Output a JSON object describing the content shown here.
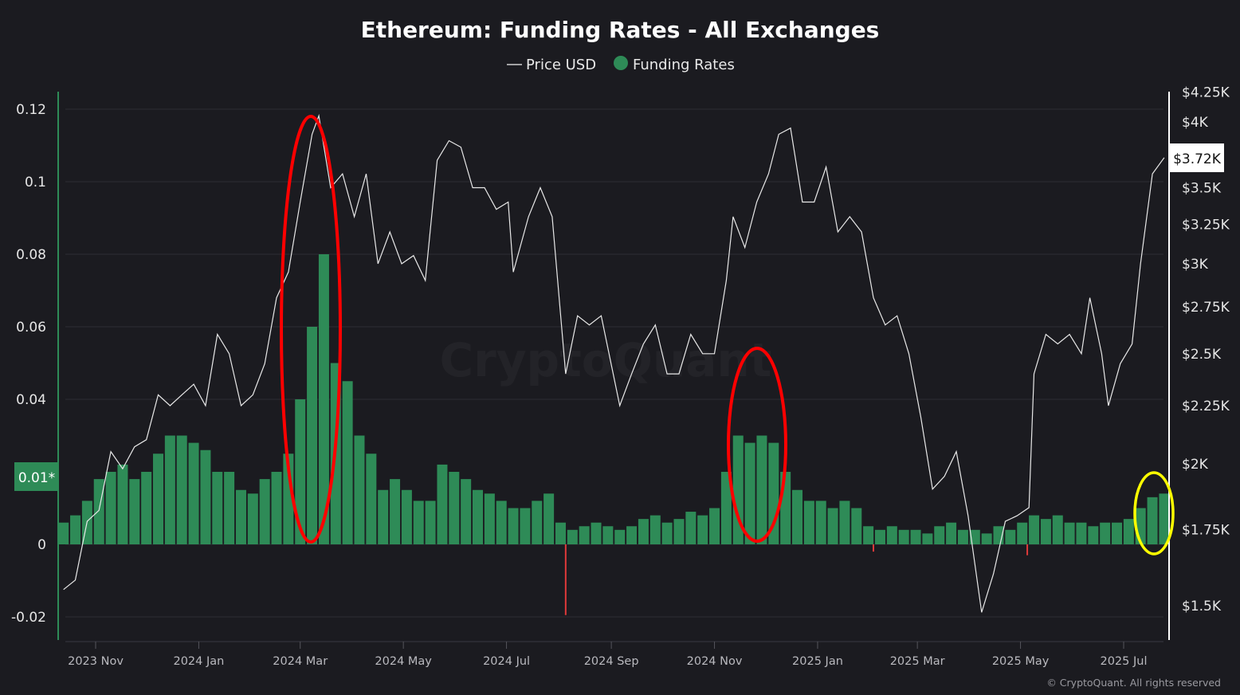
{
  "chart_data": {
    "type": "bar+line",
    "title": "Ethereum: Funding Rates - All Exchanges",
    "legend": [
      {
        "name": "Price USD",
        "color": "#e8e8e8",
        "symbol": "line"
      },
      {
        "name": "Funding Rates",
        "color": "#2e8b57",
        "symbol": "dot"
      }
    ],
    "legend_position": "top-center",
    "grid": true,
    "left_axis": {
      "ticks": [
        0.12,
        0.1,
        0.08,
        0.06,
        0.04,
        0,
        -0.02
      ],
      "tick_labels": [
        "0.12",
        "0.1",
        "0.08",
        "0.06",
        "0.04",
        "0",
        "-0.02"
      ],
      "ylim": [
        -0.026,
        0.124
      ],
      "highlight_label": "0.01*",
      "highlight_value": 0.01
    },
    "right_axis": {
      "scale": "log",
      "tick_labels": [
        "$4.25K",
        "$4K",
        "$3.5K",
        "$3.25K",
        "$3K",
        "$2.75K",
        "$2.5K",
        "$2.25K",
        "$2K",
        "$1.75K",
        "$1.5K"
      ],
      "ticks": [
        4250,
        4000,
        3500,
        3250,
        3000,
        2750,
        2500,
        2250,
        2000,
        1750,
        1500
      ],
      "current_label": "$3.72K",
      "current_value": 3720
    },
    "x_axis": {
      "tick_labels": [
        "2023 Nov",
        "2024 Jan",
        "2024 Mar",
        "2024 May",
        "2024 Jul",
        "2024 Sep",
        "2024 Nov",
        "2025 Jan",
        "2025 Mar",
        "2025 May",
        "2025 Jul"
      ],
      "ticks": [
        "2023-11-01",
        "2024-01-01",
        "2024-03-01",
        "2024-05-01",
        "2024-07-01",
        "2024-09-01",
        "2024-11-01",
        "2025-01-01",
        "2025-03-01",
        "2025-05-01",
        "2025-07-01"
      ]
    },
    "colors": {
      "positive": "#2e8b57",
      "negative": "#e03a3a",
      "price": "#e8e8e8",
      "annotation_red": "#ff0000",
      "annotation_yellow": "#ffff00"
    },
    "price_series": [
      [
        "2023-10-13",
        1550
      ],
      [
        "2023-10-20",
        1580
      ],
      [
        "2023-10-27",
        1780
      ],
      [
        "2023-11-03",
        1820
      ],
      [
        "2023-11-10",
        2050
      ],
      [
        "2023-11-17",
        1980
      ],
      [
        "2023-11-24",
        2070
      ],
      [
        "2023-12-01",
        2100
      ],
      [
        "2023-12-08",
        2300
      ],
      [
        "2023-12-15",
        2250
      ],
      [
        "2023-12-22",
        2300
      ],
      [
        "2023-12-29",
        2350
      ],
      [
        "2024-01-05",
        2250
      ],
      [
        "2024-01-12",
        2600
      ],
      [
        "2024-01-19",
        2500
      ],
      [
        "2024-01-26",
        2250
      ],
      [
        "2024-02-02",
        2300
      ],
      [
        "2024-02-09",
        2450
      ],
      [
        "2024-02-16",
        2800
      ],
      [
        "2024-02-23",
        2950
      ],
      [
        "2024-03-01",
        3400
      ],
      [
        "2024-03-08",
        3900
      ],
      [
        "2024-03-12",
        4050
      ],
      [
        "2024-03-19",
        3500
      ],
      [
        "2024-03-26",
        3600
      ],
      [
        "2024-04-02",
        3300
      ],
      [
        "2024-04-09",
        3600
      ],
      [
        "2024-04-16",
        3000
      ],
      [
        "2024-04-23",
        3200
      ],
      [
        "2024-04-30",
        3000
      ],
      [
        "2024-05-07",
        3050
      ],
      [
        "2024-05-14",
        2900
      ],
      [
        "2024-05-21",
        3700
      ],
      [
        "2024-05-28",
        3850
      ],
      [
        "2024-06-04",
        3800
      ],
      [
        "2024-06-11",
        3500
      ],
      [
        "2024-06-18",
        3500
      ],
      [
        "2024-06-25",
        3350
      ],
      [
        "2024-07-02",
        3400
      ],
      [
        "2024-07-05",
        2950
      ],
      [
        "2024-07-14",
        3300
      ],
      [
        "2024-07-21",
        3500
      ],
      [
        "2024-07-28",
        3300
      ],
      [
        "2024-08-05",
        2400
      ],
      [
        "2024-08-12",
        2700
      ],
      [
        "2024-08-19",
        2650
      ],
      [
        "2024-08-26",
        2700
      ],
      [
        "2024-09-06",
        2250
      ],
      [
        "2024-09-13",
        2400
      ],
      [
        "2024-09-20",
        2550
      ],
      [
        "2024-09-27",
        2650
      ],
      [
        "2024-10-04",
        2400
      ],
      [
        "2024-10-11",
        2400
      ],
      [
        "2024-10-18",
        2600
      ],
      [
        "2024-10-25",
        2500
      ],
      [
        "2024-11-01",
        2500
      ],
      [
        "2024-11-08",
        2900
      ],
      [
        "2024-11-12",
        3300
      ],
      [
        "2024-11-19",
        3100
      ],
      [
        "2024-11-26",
        3400
      ],
      [
        "2024-12-03",
        3600
      ],
      [
        "2024-12-09",
        3900
      ],
      [
        "2024-12-16",
        3950
      ],
      [
        "2024-12-23",
        3400
      ],
      [
        "2024-12-30",
        3400
      ],
      [
        "2025-01-06",
        3650
      ],
      [
        "2025-01-13",
        3200
      ],
      [
        "2025-01-20",
        3300
      ],
      [
        "2025-01-27",
        3200
      ],
      [
        "2025-02-03",
        2800
      ],
      [
        "2025-02-10",
        2650
      ],
      [
        "2025-02-17",
        2700
      ],
      [
        "2025-02-24",
        2500
      ],
      [
        "2025-03-03",
        2200
      ],
      [
        "2025-03-10",
        1900
      ],
      [
        "2025-03-17",
        1950
      ],
      [
        "2025-03-24",
        2050
      ],
      [
        "2025-03-31",
        1800
      ],
      [
        "2025-04-08",
        1480
      ],
      [
        "2025-04-15",
        1600
      ],
      [
        "2025-04-22",
        1780
      ],
      [
        "2025-04-29",
        1800
      ],
      [
        "2025-05-06",
        1830
      ],
      [
        "2025-05-09",
        2400
      ],
      [
        "2025-05-16",
        2600
      ],
      [
        "2025-05-23",
        2550
      ],
      [
        "2025-05-30",
        2600
      ],
      [
        "2025-06-06",
        2500
      ],
      [
        "2025-06-11",
        2800
      ],
      [
        "2025-06-18",
        2500
      ],
      [
        "2025-06-22",
        2250
      ],
      [
        "2025-06-29",
        2450
      ],
      [
        "2025-07-06",
        2550
      ],
      [
        "2025-07-11",
        3000
      ],
      [
        "2025-07-18",
        3600
      ],
      [
        "2025-07-25",
        3720
      ]
    ],
    "funding_series": [
      [
        "2023-10-13",
        0.006
      ],
      [
        "2023-10-20",
        0.008
      ],
      [
        "2023-10-27",
        0.012
      ],
      [
        "2023-11-03",
        0.018
      ],
      [
        "2023-11-10",
        0.02
      ],
      [
        "2023-11-17",
        0.022
      ],
      [
        "2023-11-24",
        0.018
      ],
      [
        "2023-12-01",
        0.02
      ],
      [
        "2023-12-08",
        0.025
      ],
      [
        "2023-12-15",
        0.03
      ],
      [
        "2023-12-22",
        0.03
      ],
      [
        "2023-12-29",
        0.028
      ],
      [
        "2024-01-05",
        0.026
      ],
      [
        "2024-01-12",
        0.02
      ],
      [
        "2024-01-19",
        0.02
      ],
      [
        "2024-01-26",
        0.015
      ],
      [
        "2024-02-02",
        0.014
      ],
      [
        "2024-02-09",
        0.018
      ],
      [
        "2024-02-16",
        0.02
      ],
      [
        "2024-02-23",
        0.025
      ],
      [
        "2024-03-01",
        0.04
      ],
      [
        "2024-03-08",
        0.06
      ],
      [
        "2024-03-15",
        0.08
      ],
      [
        "2024-03-22",
        0.05
      ],
      [
        "2024-03-29",
        0.045
      ],
      [
        "2024-04-05",
        0.03
      ],
      [
        "2024-04-12",
        0.025
      ],
      [
        "2024-04-19",
        0.015
      ],
      [
        "2024-04-26",
        0.018
      ],
      [
        "2024-05-03",
        0.015
      ],
      [
        "2024-05-10",
        0.012
      ],
      [
        "2024-05-17",
        0.012
      ],
      [
        "2024-05-24",
        0.022
      ],
      [
        "2024-05-31",
        0.02
      ],
      [
        "2024-06-07",
        0.018
      ],
      [
        "2024-06-14",
        0.015
      ],
      [
        "2024-06-21",
        0.014
      ],
      [
        "2024-06-28",
        0.012
      ],
      [
        "2024-07-05",
        0.01
      ],
      [
        "2024-07-12",
        0.01
      ],
      [
        "2024-07-19",
        0.012
      ],
      [
        "2024-07-26",
        0.014
      ],
      [
        "2024-08-02",
        0.006
      ],
      [
        "2024-08-05",
        -0.0195
      ],
      [
        "2024-08-09",
        0.004
      ],
      [
        "2024-08-16",
        0.005
      ],
      [
        "2024-08-23",
        0.006
      ],
      [
        "2024-08-30",
        0.005
      ],
      [
        "2024-09-06",
        0.004
      ],
      [
        "2024-09-13",
        0.005
      ],
      [
        "2024-09-20",
        0.007
      ],
      [
        "2024-09-27",
        0.008
      ],
      [
        "2024-10-04",
        0.006
      ],
      [
        "2024-10-11",
        0.007
      ],
      [
        "2024-10-18",
        0.009
      ],
      [
        "2024-10-25",
        0.008
      ],
      [
        "2024-11-01",
        0.01
      ],
      [
        "2024-11-08",
        0.02
      ],
      [
        "2024-11-15",
        0.03
      ],
      [
        "2024-11-22",
        0.028
      ],
      [
        "2024-11-29",
        0.03
      ],
      [
        "2024-12-06",
        0.028
      ],
      [
        "2024-12-13",
        0.02
      ],
      [
        "2024-12-20",
        0.015
      ],
      [
        "2024-12-27",
        0.012
      ],
      [
        "2025-01-03",
        0.012
      ],
      [
        "2025-01-10",
        0.01
      ],
      [
        "2025-01-17",
        0.012
      ],
      [
        "2025-01-24",
        0.01
      ],
      [
        "2025-01-31",
        0.005
      ],
      [
        "2025-02-03",
        -0.002
      ],
      [
        "2025-02-07",
        0.004
      ],
      [
        "2025-02-14",
        0.005
      ],
      [
        "2025-02-21",
        0.004
      ],
      [
        "2025-02-28",
        0.004
      ],
      [
        "2025-03-07",
        0.003
      ],
      [
        "2025-03-14",
        0.005
      ],
      [
        "2025-03-21",
        0.006
      ],
      [
        "2025-03-28",
        0.004
      ],
      [
        "2025-04-04",
        0.004
      ],
      [
        "2025-04-11",
        0.003
      ],
      [
        "2025-04-18",
        0.005
      ],
      [
        "2025-04-25",
        0.004
      ],
      [
        "2025-05-02",
        0.006
      ],
      [
        "2025-05-05",
        -0.003
      ],
      [
        "2025-05-09",
        0.008
      ],
      [
        "2025-05-16",
        0.007
      ],
      [
        "2025-05-23",
        0.008
      ],
      [
        "2025-05-30",
        0.006
      ],
      [
        "2025-06-06",
        0.006
      ],
      [
        "2025-06-13",
        0.005
      ],
      [
        "2025-06-20",
        0.006
      ],
      [
        "2025-06-27",
        0.006
      ],
      [
        "2025-07-04",
        0.007
      ],
      [
        "2025-07-11",
        0.01
      ],
      [
        "2025-07-18",
        0.013
      ],
      [
        "2025-07-25",
        0.014
      ]
    ]
  },
  "watermark": "CryptoQuant",
  "copyright": "© CryptoQuant. All rights reserved"
}
